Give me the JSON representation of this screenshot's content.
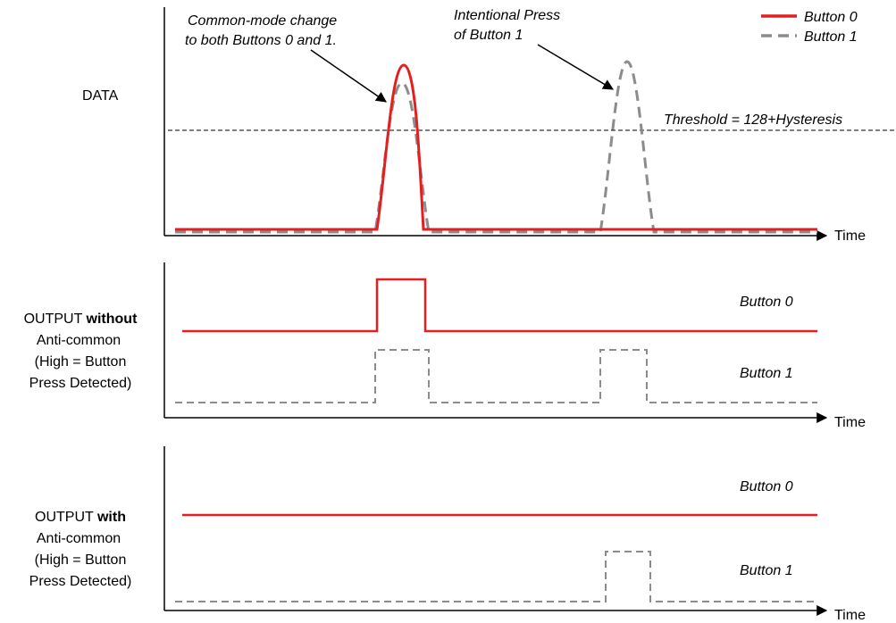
{
  "legend": {
    "items": [
      {
        "label": "Button 0",
        "color": "#e41f1f",
        "style": "solid"
      },
      {
        "label": "Button 1",
        "color": "#8c8c8c",
        "style": "dashed"
      }
    ]
  },
  "panels": {
    "data": {
      "label": "DATA",
      "time_label": "Time",
      "threshold_label": "Threshold = 128+Hysteresis",
      "annotation_common": [
        "Common-mode change",
        "to both Buttons 0 and 1."
      ],
      "annotation_intentional": [
        "Intentional Press",
        "of Button 1"
      ]
    },
    "without": {
      "label_lines": [
        "OUTPUT ",
        "without",
        "Anti-common",
        "(High = Button",
        "Press Detected)"
      ],
      "button0_label": "Button 0",
      "button1_label": "Button 1",
      "time_label": "Time"
    },
    "with": {
      "label_lines": [
        "OUTPUT ",
        "with",
        "Anti-common",
        "(High = Button",
        "Press Detected)"
      ],
      "button0_label": "Button 0",
      "button1_label": "Button 1",
      "time_label": "Time"
    }
  },
  "colors": {
    "button0": "#e41f1f",
    "button1": "#8c8c8c",
    "axis": "#000000"
  }
}
